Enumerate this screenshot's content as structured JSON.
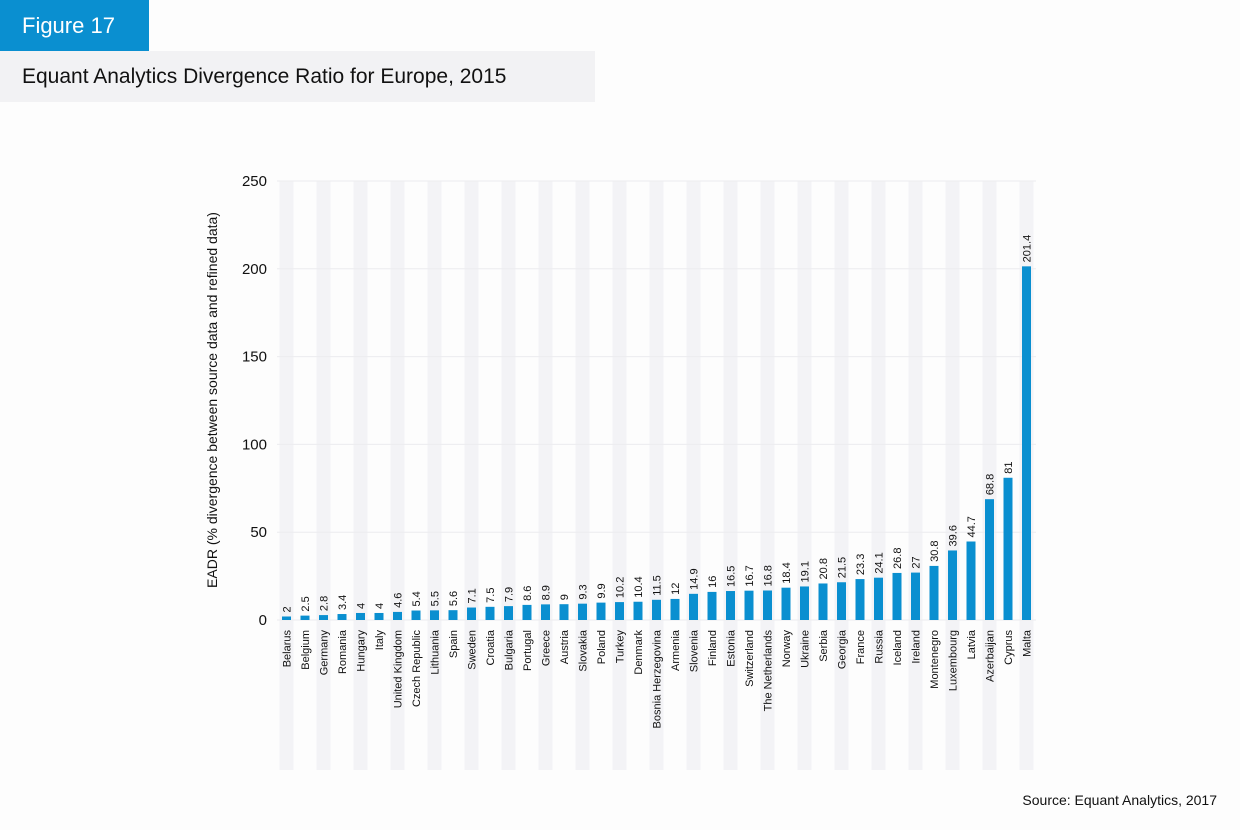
{
  "figure": {
    "badge": "Figure 17",
    "title": "Equant Analytics Divergence Ratio for Europe, 2015",
    "source": "Source: Equant Analytics, 2017"
  },
  "colors": {
    "accent": "#0a8fd0",
    "bar": "#0a8fd0",
    "stripe": "#f3f3f6",
    "title_bg": "#f2f2f4",
    "gridline": "#ececef"
  },
  "chart_data": {
    "type": "bar",
    "title": "Equant Analytics Divergence Ratio for Europe, 2015",
    "xlabel": "",
    "ylabel": "EADR (% divergence between source data and refined data)",
    "ylim": [
      0,
      250
    ],
    "yticks": [
      0,
      50,
      100,
      150,
      200,
      250
    ],
    "grid": true,
    "legend": "none",
    "categories": [
      "Belarus",
      "Belgium",
      "Germany",
      "Romania",
      "Hungary",
      "Italy",
      "United Kingdom",
      "Czech Republic",
      "Lithuania",
      "Spain",
      "Sweden",
      "Croatia",
      "Bulgaria",
      "Portugal",
      "Greece",
      "Austria",
      "Slovakia",
      "Poland",
      "Turkey",
      "Denmark",
      "Bosnia Herzegovina",
      "Armenia",
      "Slovenia",
      "Finland",
      "Estonia",
      "Switzerland",
      "The Netherlands",
      "Norway",
      "Ukraine",
      "Serbia",
      "Georgia",
      "France",
      "Russia",
      "Iceland",
      "Ireland",
      "Montenegro",
      "Luxembourg",
      "Latvia",
      "Azerbaijan",
      "Cyprus",
      "Malta"
    ],
    "values": [
      2,
      2.5,
      2.8,
      3.4,
      4,
      4,
      4.6,
      5.4,
      5.5,
      5.6,
      7.1,
      7.5,
      7.9,
      8.6,
      8.9,
      9,
      9.3,
      9.9,
      10.2,
      10.4,
      11.5,
      12,
      14.9,
      16,
      16.5,
      16.7,
      16.8,
      18.4,
      19.1,
      20.8,
      21.5,
      23.3,
      24.1,
      26.8,
      27,
      30.8,
      39.6,
      44.7,
      68.8,
      81,
      201.4
    ],
    "value_labels": [
      "2",
      "2.5",
      "2.8",
      "3.4",
      "4",
      "4",
      "4.6",
      "5.4",
      "5.5",
      "5.6",
      "7.1",
      "7.5",
      "7.9",
      "8.6",
      "8.9",
      "9",
      "9.3",
      "9.9",
      "10.2",
      "10.4",
      "11.5",
      "12",
      "14.9",
      "16",
      "16.5",
      "16.7",
      "16.8",
      "18.4",
      "19.1",
      "20.8",
      "21.5",
      "23.3",
      "24.1",
      "26.8",
      "27",
      "30.8",
      "39.6",
      "44.7",
      "68.8",
      "81",
      "201.4"
    ]
  }
}
